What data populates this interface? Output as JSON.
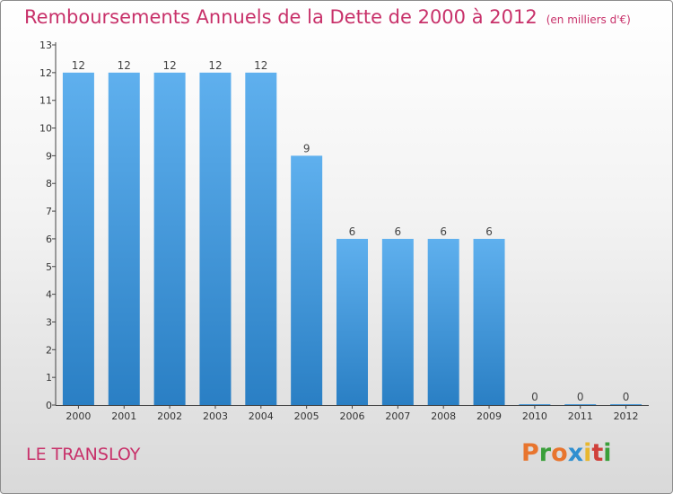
{
  "header": {
    "title": "Remboursements Annuels de la Dette de 2000 à 2012",
    "subtitle": "(en milliers d'€)"
  },
  "footer": {
    "town": "LE TRANSLOY",
    "logo_text": "Proxiti"
  },
  "colors": {
    "title": "#c8316a",
    "bar_top": "#5fb0ee",
    "bar_bottom": "#2a7fc4",
    "axis": "#444444",
    "logo_letters": [
      "#e8752e",
      "#3a9f3a",
      "#e8752e",
      "#2f8fd0",
      "#e8b72e",
      "#d0403a",
      "#3a9f3a"
    ]
  },
  "chart_data": {
    "type": "bar",
    "categories": [
      "2000",
      "2001",
      "2002",
      "2003",
      "2004",
      "2005",
      "2006",
      "2007",
      "2008",
      "2009",
      "2010",
      "2011",
      "2012"
    ],
    "values": [
      12,
      12,
      12,
      12,
      12,
      9,
      6,
      6,
      6,
      6,
      0,
      0,
      0
    ],
    "title": "Remboursements Annuels de la Dette de 2000 à 2012",
    "subtitle": "(en milliers d'€)",
    "ylim": [
      0,
      13
    ],
    "yticks": [
      0,
      1,
      2,
      3,
      4,
      5,
      6,
      7,
      8,
      9,
      10,
      11,
      12,
      13
    ],
    "grid": false,
    "legend": "none"
  }
}
